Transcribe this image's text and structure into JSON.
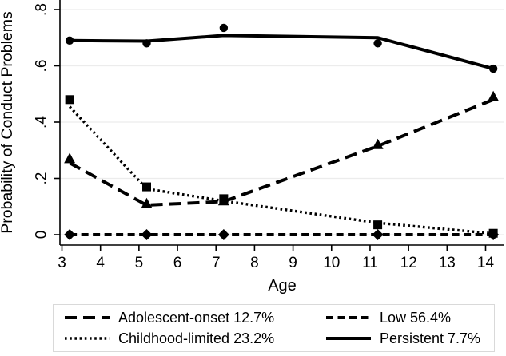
{
  "chart_data": {
    "type": "line",
    "title": "",
    "xlabel": "Age",
    "ylabel": "Probability of Conduct Problems",
    "x_ticks": [
      3,
      4,
      5,
      6,
      7,
      8,
      9,
      10,
      11,
      12,
      13,
      14
    ],
    "y_ticks": [
      0,
      0.2,
      0.4,
      0.6,
      0.8
    ],
    "y_tick_labels": [
      "0",
      ".2",
      ".4",
      ".6",
      ".8"
    ],
    "xlim": [
      3,
      14
    ],
    "ylim": [
      0,
      0.8
    ],
    "grid": "horizontal-only",
    "legend_position": "bottom",
    "x": [
      3.2,
      5.2,
      7.2,
      11.2,
      14.2
    ],
    "series": [
      {
        "name": "adolescent-onset",
        "label": "Adolescent-onset 12.7%",
        "group_percent": "12.7%",
        "line_style": "long-dash",
        "marker": "triangle",
        "marker_values": [
          0.27,
          0.11,
          0.12,
          0.32,
          0.49
        ],
        "line_values": [
          0.255,
          0.105,
          0.118,
          0.315,
          0.48
        ]
      },
      {
        "name": "childhood-limited",
        "label": "Childhood-limited 23.2%",
        "group_percent": "23.2%",
        "line_style": "dotted",
        "marker": "square",
        "marker_values": [
          0.48,
          0.17,
          0.128,
          0.035,
          0.005
        ],
        "line_values": [
          0.455,
          0.163,
          0.12,
          0.042,
          0.004
        ]
      },
      {
        "name": "low",
        "label": "Low 56.4%",
        "group_percent": "56.4%",
        "line_style": "short-dash",
        "marker": "diamond",
        "marker_values": [
          0,
          0,
          0,
          0,
          0
        ],
        "line_values": [
          0,
          0,
          0,
          0,
          0
        ]
      },
      {
        "name": "persistent",
        "label": "Persistent 7.7%",
        "group_percent": "7.7%",
        "line_style": "solid",
        "marker": "circle",
        "marker_values": [
          0.69,
          0.68,
          0.735,
          0.68,
          0.59
        ],
        "line_values": [
          0.69,
          0.688,
          0.708,
          0.7,
          0.59
        ]
      }
    ],
    "legend_columns": [
      [
        0,
        1
      ],
      [
        2,
        3
      ]
    ],
    "colors": {
      "series": "#000000",
      "grid": "#ececec",
      "axis": "#000000",
      "text": "#000000",
      "legend_border": "#d9d9d9",
      "background": "#ffffff"
    }
  }
}
